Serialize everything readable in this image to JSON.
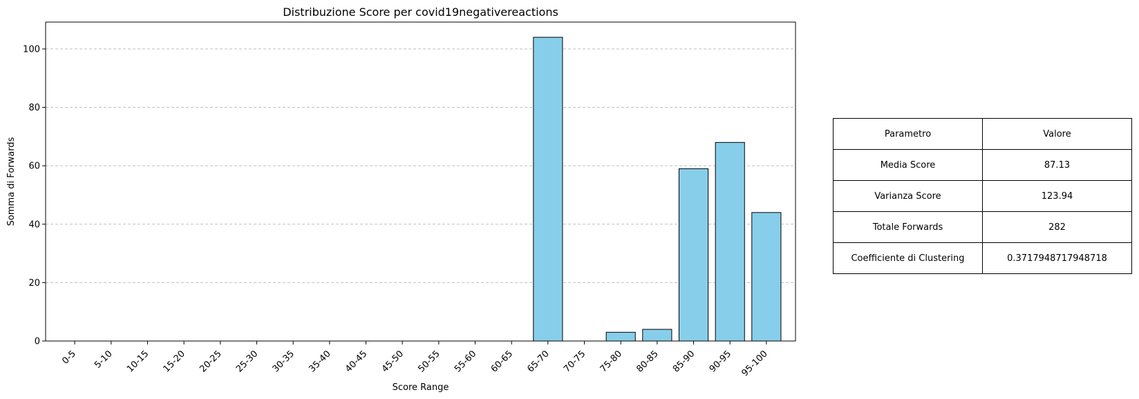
{
  "chart_data": {
    "type": "bar",
    "title": "Distribuzione Score per covid19negativereactions",
    "xlabel": "Score Range",
    "ylabel": "Somma di Forwards",
    "categories": [
      "0-5",
      "5-10",
      "10-15",
      "15-20",
      "20-25",
      "25-30",
      "30-35",
      "35-40",
      "40-45",
      "45-50",
      "50-55",
      "55-60",
      "60-65",
      "65-70",
      "70-75",
      "75-80",
      "80-85",
      "85-90",
      "90-95",
      "95-100"
    ],
    "values": [
      0,
      0,
      0,
      0,
      0,
      0,
      0,
      0,
      0,
      0,
      0,
      0,
      0,
      104,
      0,
      3,
      4,
      59,
      68,
      44
    ],
    "ylim": [
      0,
      109.2
    ],
    "yticks": [
      0,
      20,
      40,
      60,
      80,
      100
    ],
    "grid": "y-dashed",
    "bar_color": "#87CEEB",
    "bar_edge_color": "#000000"
  },
  "table": {
    "header": [
      "Parametro",
      "Valore"
    ],
    "rows": [
      [
        "Media Score",
        "87.13"
      ],
      [
        "Varianza Score",
        "123.94"
      ],
      [
        "Totale Forwards",
        "282"
      ],
      [
        "Coefficiente di Clustering",
        "0.3717948717948718"
      ]
    ]
  }
}
